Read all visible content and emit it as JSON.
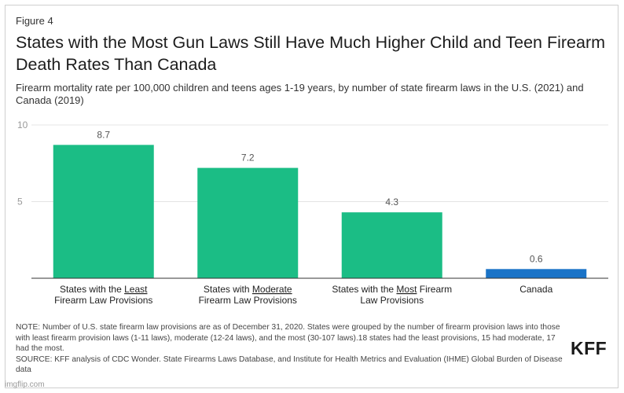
{
  "figure_label": "Figure 4",
  "title": "States with the Most Gun Laws Still Have Much Higher Child and Teen Firearm Death Rates Than Canada",
  "subtitle": "Firearm mortality rate per 100,000 children and teens ages 1-19 years, by number of state firearm laws in the U.S. (2021) and Canada (2019)",
  "note": "NOTE: Number of U.S. state firearm law provisions are as of December 31, 2020. States were grouped by the number of firearm provision laws into those with least firearm provision laws (1-11 laws), moderate (12-24 laws), and the most (30-107 laws).18 states had the least provisions, 15 had moderate, 17 had the most.",
  "source": "SOURCE: KFF analysis of CDC Wonder. State Firearms Laws Database, and Institute for Health Metrics and Evaluation (IHME) Global Burden of Disease data",
  "logo": "KFF",
  "watermark": "imgflip.com",
  "colors": {
    "us_bar": "#1bbd85",
    "canada_bar": "#1a73c7",
    "gridline": "#e4e4e4",
    "axis": "#333333"
  },
  "chart_data": {
    "type": "bar",
    "ylim": [
      0,
      10
    ],
    "yticks": [
      5,
      10
    ],
    "grid": true,
    "categories": [
      {
        "lines": [
          [
            "States with the ",
            "Least",
            ""
          ],
          [
            "Firearm Law Provisions"
          ]
        ]
      },
      {
        "lines": [
          [
            "States with ",
            "Moderate",
            ""
          ],
          [
            "Firearm Law Provisions"
          ]
        ]
      },
      {
        "lines": [
          [
            "States with the ",
            "Most",
            " Firearm"
          ],
          [
            "Law Provisions"
          ]
        ]
      },
      {
        "lines": [
          [
            "Canada"
          ]
        ]
      }
    ],
    "values": [
      8.7,
      7.2,
      4.3,
      0.6
    ],
    "value_labels": [
      "8.7",
      "7.2",
      "4.3",
      "0.6"
    ],
    "bar_colors": [
      "#1bbd85",
      "#1bbd85",
      "#1bbd85",
      "#1a73c7"
    ]
  }
}
